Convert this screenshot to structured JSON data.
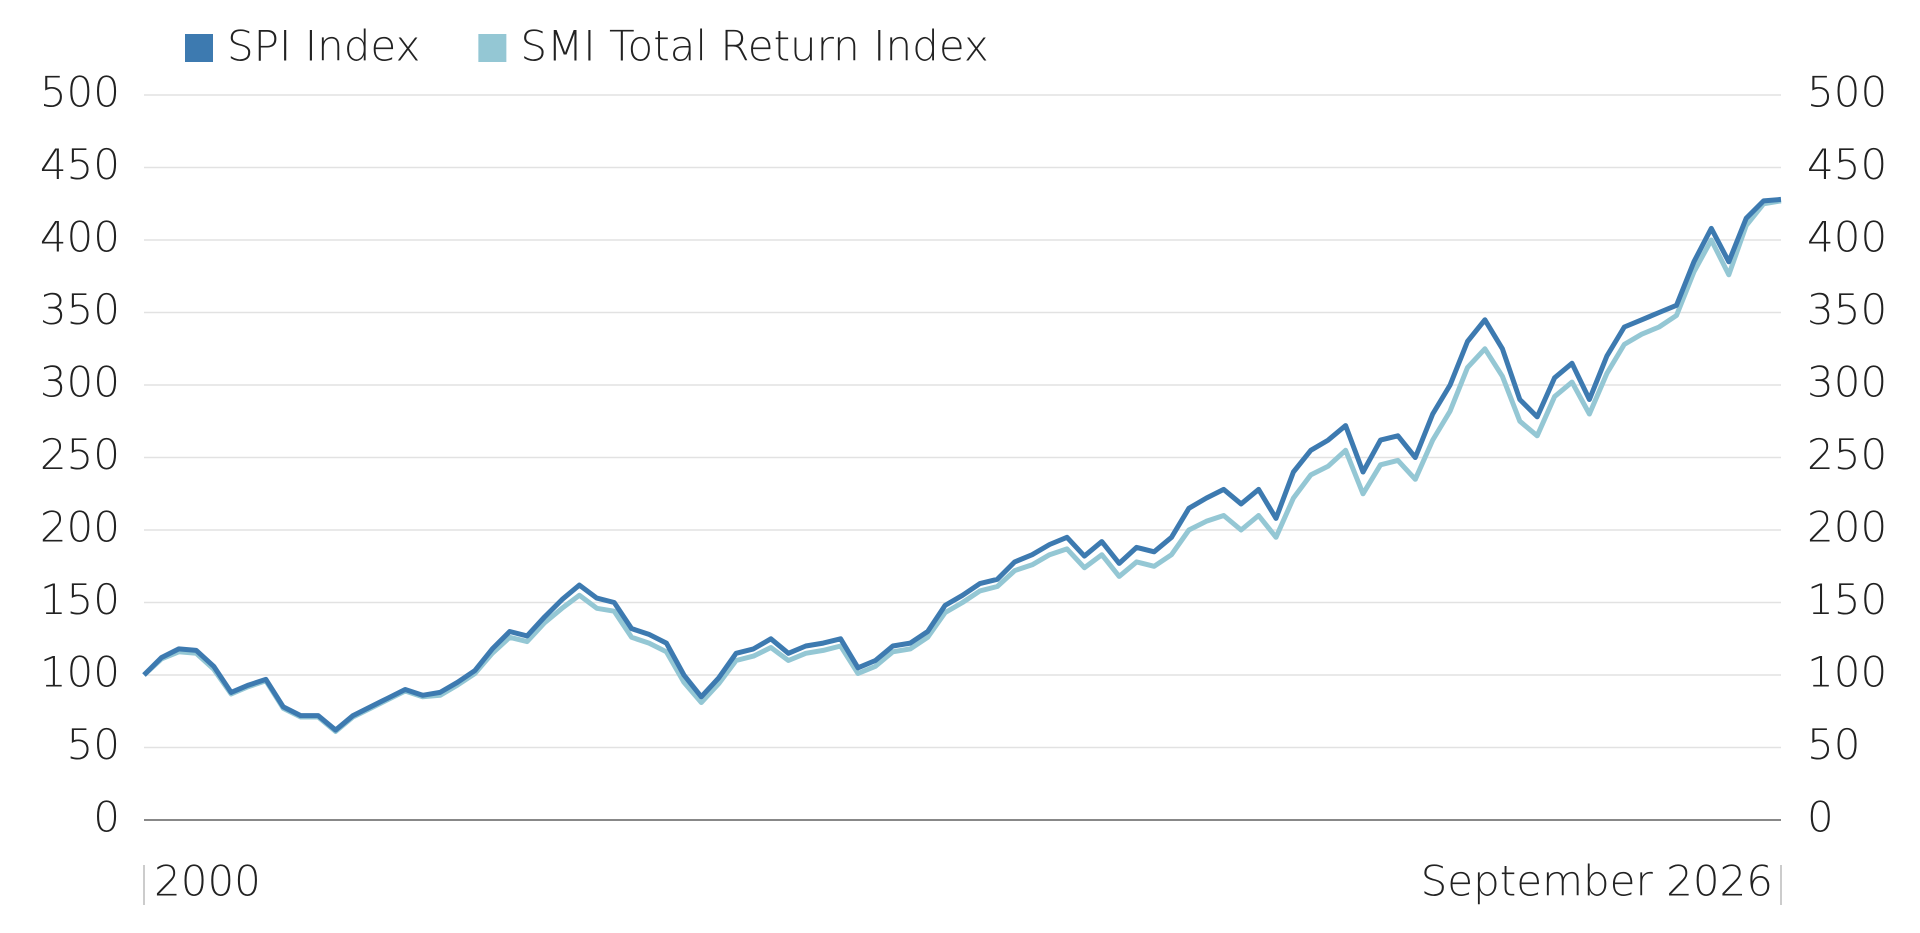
{
  "chart_data": {
    "type": "line",
    "categories": [
      "2000",
      null,
      null,
      null,
      null,
      null,
      null,
      null,
      null,
      null,
      null,
      null,
      null,
      null,
      null,
      null,
      null,
      null,
      null,
      null,
      null,
      null,
      null,
      null,
      null,
      null,
      null,
      null,
      null,
      null,
      null,
      null,
      null,
      null,
      null,
      null,
      null,
      null,
      null,
      null,
      null,
      null,
      null,
      null,
      null,
      null,
      null,
      null,
      null,
      null,
      null,
      null,
      null,
      null,
      null,
      null,
      null,
      null,
      null,
      null,
      null,
      null,
      null,
      null,
      null,
      null,
      null,
      null,
      null,
      null,
      null,
      null,
      null,
      null,
      null,
      null,
      null,
      null,
      null,
      null,
      null,
      null,
      null,
      null,
      null,
      null,
      null,
      null,
      null,
      null,
      null,
      null,
      null,
      null,
      "September 2026"
    ],
    "series": [
      {
        "name": "SPI Index",
        "color": "#3d7ab0",
        "values": [
          100,
          112,
          118,
          117,
          106,
          88,
          93,
          97,
          78,
          72,
          72,
          62,
          72,
          78,
          84,
          90,
          86,
          88,
          95,
          103,
          118,
          130,
          127,
          140,
          152,
          162,
          153,
          150,
          132,
          128,
          122,
          100,
          85,
          98,
          115,
          118,
          125,
          115,
          120,
          122,
          125,
          105,
          110,
          120,
          122,
          130,
          148,
          155,
          163,
          166,
          178,
          183,
          190,
          195,
          182,
          192,
          177,
          188,
          185,
          195,
          215,
          222,
          228,
          218,
          228,
          208,
          240,
          255,
          262,
          272,
          240,
          262,
          265,
          250,
          280,
          300,
          330,
          345,
          325,
          290,
          278,
          305,
          315,
          290,
          320,
          340,
          345,
          350,
          355,
          385,
          408,
          385,
          415,
          427,
          428
        ]
      },
      {
        "name": "SMI Total Return Index",
        "color": "#94c7d4",
        "values": [
          100,
          111,
          116,
          115,
          104,
          87,
          92,
          96,
          77,
          71,
          71,
          61,
          71,
          77,
          83,
          89,
          85,
          86,
          93,
          101,
          115,
          126,
          123,
          136,
          146,
          155,
          146,
          144,
          126,
          122,
          116,
          95,
          81,
          94,
          110,
          113,
          119,
          110,
          115,
          117,
          120,
          101,
          106,
          116,
          118,
          126,
          143,
          150,
          158,
          161,
          172,
          176,
          183,
          187,
          174,
          183,
          168,
          178,
          175,
          183,
          200,
          206,
          210,
          200,
          210,
          195,
          222,
          238,
          244,
          255,
          225,
          245,
          248,
          235,
          262,
          282,
          312,
          325,
          306,
          275,
          265,
          292,
          302,
          280,
          308,
          328,
          335,
          340,
          348,
          378,
          400,
          376,
          410,
          425,
          427
        ]
      }
    ],
    "ylim": [
      0,
      500
    ],
    "yticks": [
      0,
      50,
      100,
      150,
      200,
      250,
      300,
      350,
      400,
      450,
      500
    ],
    "y2lim": [
      0,
      500
    ],
    "y2ticks": [
      0,
      50,
      100,
      150,
      200,
      250,
      300,
      350,
      400,
      450,
      500
    ],
    "grid": true
  }
}
